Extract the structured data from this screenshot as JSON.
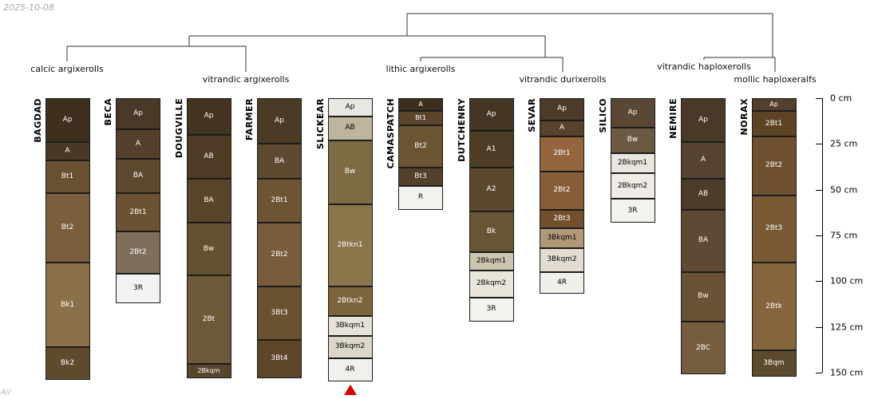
{
  "figure": {
    "date_note": "2025-10-08",
    "footer_note": "A//"
  },
  "dendrogram": {
    "groups": [
      {
        "label": "calcic argixerolls"
      },
      {
        "label": "vitrandic argixerolls"
      },
      {
        "label": "lithic argixerolls"
      },
      {
        "label": "vitrandic durixerolls"
      },
      {
        "label": "vitrandic haploxerolls"
      },
      {
        "label": "mollic haploxeralfs"
      }
    ]
  },
  "depth_axis": {
    "unit": "cm",
    "max_depth_cm": 150,
    "tick_labels": [
      "0 cm",
      "25 cm",
      "50 cm",
      "75 cm",
      "100 cm",
      "125 cm",
      "150 cm"
    ]
  },
  "marker": {
    "type": "triangle",
    "color": "#d40000",
    "profile": "SLICKEAR"
  },
  "profiles": [
    {
      "name": "BAGDAD",
      "horizons": [
        {
          "name": "Ap",
          "top_cm": 0,
          "bottom_cm": 24,
          "color": "#3f2f1f"
        },
        {
          "name": "A",
          "top_cm": 24,
          "bottom_cm": 34,
          "color": "#4a3826"
        },
        {
          "name": "Bt1",
          "top_cm": 34,
          "bottom_cm": 52,
          "color": "#6a5132"
        },
        {
          "name": "Bt2",
          "top_cm": 52,
          "bottom_cm": 90,
          "color": "#7b5f3c"
        },
        {
          "name": "Bk1",
          "top_cm": 90,
          "bottom_cm": 136,
          "color": "#8a7049"
        },
        {
          "name": "Bk2",
          "top_cm": 136,
          "bottom_cm": 154,
          "color": "#5f4a2e"
        }
      ]
    },
    {
      "name": "BECA",
      "horizons": [
        {
          "name": "Ap",
          "top_cm": 0,
          "bottom_cm": 17,
          "color": "#4a3928"
        },
        {
          "name": "A",
          "top_cm": 17,
          "bottom_cm": 33,
          "color": "#53412c"
        },
        {
          "name": "BA",
          "top_cm": 33,
          "bottom_cm": 52,
          "color": "#5c4930"
        },
        {
          "name": "2Bt1",
          "top_cm": 52,
          "bottom_cm": 73,
          "color": "#6b5232"
        },
        {
          "name": "2Bt2",
          "top_cm": 73,
          "bottom_cm": 96,
          "color": "#7d6f5a"
        },
        {
          "name": "3R",
          "top_cm": 96,
          "bottom_cm": 112,
          "color": "#f2f2f2"
        }
      ]
    },
    {
      "name": "DOUGVILLE",
      "horizons": [
        {
          "name": "Ap",
          "top_cm": 0,
          "bottom_cm": 20,
          "color": "#44331f"
        },
        {
          "name": "AB",
          "top_cm": 20,
          "bottom_cm": 44,
          "color": "#4e3b24"
        },
        {
          "name": "BA",
          "top_cm": 44,
          "bottom_cm": 68,
          "color": "#59452a"
        },
        {
          "name": "Bw",
          "top_cm": 68,
          "bottom_cm": 97,
          "color": "#63502e"
        },
        {
          "name": "2Bt",
          "top_cm": 97,
          "bottom_cm": 145,
          "color": "#6d5837"
        },
        {
          "name": "2Bkqm",
          "top_cm": 145,
          "bottom_cm": 153,
          "color": "#57452c"
        }
      ]
    },
    {
      "name": "FARMER",
      "horizons": [
        {
          "name": "Ap",
          "top_cm": 0,
          "bottom_cm": 25,
          "color": "#4b3a26"
        },
        {
          "name": "BA",
          "top_cm": 25,
          "bottom_cm": 44,
          "color": "#5d4930"
        },
        {
          "name": "2Bt1",
          "top_cm": 44,
          "bottom_cm": 68,
          "color": "#6d5433"
        },
        {
          "name": "2Bt2",
          "top_cm": 68,
          "bottom_cm": 103,
          "color": "#795c3a"
        },
        {
          "name": "3Bt3",
          "top_cm": 103,
          "bottom_cm": 132,
          "color": "#6a5130"
        },
        {
          "name": "3Bt4",
          "top_cm": 132,
          "bottom_cm": 153,
          "color": "#5e4628"
        }
      ]
    },
    {
      "name": "SLICKEAR",
      "horizons": [
        {
          "name": "Ap",
          "top_cm": 0,
          "bottom_cm": 10,
          "color": "#e9e7e1"
        },
        {
          "name": "AB",
          "top_cm": 10,
          "bottom_cm": 23,
          "color": "#bfb49c"
        },
        {
          "name": "Bw",
          "top_cm": 23,
          "bottom_cm": 58,
          "color": "#7e6b44"
        },
        {
          "name": "2Btkn1",
          "top_cm": 58,
          "bottom_cm": 103,
          "color": "#8a744a"
        },
        {
          "name": "2Btkn2",
          "top_cm": 103,
          "bottom_cm": 119,
          "color": "#7c653c"
        },
        {
          "name": "3Bkqm1",
          "top_cm": 119,
          "bottom_cm": 130,
          "color": "#e6e2d8"
        },
        {
          "name": "3Bkqm2",
          "top_cm": 130,
          "bottom_cm": 142,
          "color": "#dcd6c8"
        },
        {
          "name": "4R",
          "top_cm": 142,
          "bottom_cm": 155,
          "color": "#f2f0ec"
        }
      ]
    },
    {
      "name": "CAMASPATCH",
      "horizons": [
        {
          "name": "A",
          "top_cm": 0,
          "bottom_cm": 7,
          "color": "#3e2e1d"
        },
        {
          "name": "Bt1",
          "top_cm": 7,
          "bottom_cm": 15,
          "color": "#5a452b"
        },
        {
          "name": "Bt2",
          "top_cm": 15,
          "bottom_cm": 38,
          "color": "#6c5433"
        },
        {
          "name": "Bt3",
          "top_cm": 38,
          "bottom_cm": 48,
          "color": "#53402a"
        },
        {
          "name": "R",
          "top_cm": 48,
          "bottom_cm": 61,
          "color": "#f4f2ee"
        }
      ]
    },
    {
      "name": "DUTCHENRY",
      "horizons": [
        {
          "name": "Ap",
          "top_cm": 0,
          "bottom_cm": 18,
          "color": "#453525"
        },
        {
          "name": "A1",
          "top_cm": 18,
          "bottom_cm": 38,
          "color": "#4f3e26"
        },
        {
          "name": "A2",
          "top_cm": 38,
          "bottom_cm": 62,
          "color": "#5b482d"
        },
        {
          "name": "Bk",
          "top_cm": 62,
          "bottom_cm": 84,
          "color": "#685536"
        },
        {
          "name": "2Bkqm1",
          "top_cm": 84,
          "bottom_cm": 94,
          "color": "#cdc5b2"
        },
        {
          "name": "2Bkqm2",
          "top_cm": 94,
          "bottom_cm": 109,
          "color": "#e9e5da"
        },
        {
          "name": "3R",
          "top_cm": 109,
          "bottom_cm": 122,
          "color": "#f4f2ee"
        }
      ]
    },
    {
      "name": "SEVAR",
      "horizons": [
        {
          "name": "Ap",
          "top_cm": 0,
          "bottom_cm": 12,
          "color": "#4c3b28"
        },
        {
          "name": "A",
          "top_cm": 12,
          "bottom_cm": 21,
          "color": "#564329"
        },
        {
          "name": "2Bt1",
          "top_cm": 21,
          "bottom_cm": 40,
          "color": "#95653e"
        },
        {
          "name": "2Bt2",
          "top_cm": 40,
          "bottom_cm": 61,
          "color": "#875c38"
        },
        {
          "name": "2Bt3",
          "top_cm": 61,
          "bottom_cm": 71,
          "color": "#734f2e"
        },
        {
          "name": "3Bkqm1",
          "top_cm": 71,
          "bottom_cm": 82,
          "color": "#b29878"
        },
        {
          "name": "3Bkqm2",
          "top_cm": 82,
          "bottom_cm": 95,
          "color": "#e2dcd0"
        },
        {
          "name": "4R",
          "top_cm": 95,
          "bottom_cm": 107,
          "color": "#f1efe9"
        }
      ]
    },
    {
      "name": "SILICO",
      "horizons": [
        {
          "name": "Ap",
          "top_cm": 0,
          "bottom_cm": 16,
          "color": "#5a4834"
        },
        {
          "name": "Bw",
          "top_cm": 16,
          "bottom_cm": 30,
          "color": "#6b5942"
        },
        {
          "name": "2Bkqm1",
          "top_cm": 30,
          "bottom_cm": 41,
          "color": "#eae6de"
        },
        {
          "name": "2Bkqm2",
          "top_cm": 41,
          "bottom_cm": 55,
          "color": "#efece5"
        },
        {
          "name": "3R",
          "top_cm": 55,
          "bottom_cm": 68,
          "color": "#f4f2ee"
        }
      ]
    },
    {
      "name": "NEMIRE",
      "horizons": [
        {
          "name": "Ap",
          "top_cm": 0,
          "bottom_cm": 24,
          "color": "#4a3929"
        },
        {
          "name": "A",
          "top_cm": 24,
          "bottom_cm": 44,
          "color": "#554330"
        },
        {
          "name": "AB",
          "top_cm": 44,
          "bottom_cm": 61,
          "color": "#4e3c2a"
        },
        {
          "name": "BA",
          "top_cm": 61,
          "bottom_cm": 95,
          "color": "#5e4a33"
        },
        {
          "name": "Bw",
          "top_cm": 95,
          "bottom_cm": 122,
          "color": "#695235"
        },
        {
          "name": "2BC",
          "top_cm": 122,
          "bottom_cm": 151,
          "color": "#755d3d"
        }
      ]
    },
    {
      "name": "NORAX",
      "horizons": [
        {
          "name": "Ap",
          "top_cm": 0,
          "bottom_cm": 7,
          "color": "#52402c"
        },
        {
          "name": "2Bt1",
          "top_cm": 7,
          "bottom_cm": 21,
          "color": "#5e4425"
        },
        {
          "name": "2Bt2",
          "top_cm": 21,
          "bottom_cm": 53,
          "color": "#6f5130"
        },
        {
          "name": "2Bt3",
          "top_cm": 53,
          "bottom_cm": 90,
          "color": "#7a5a35"
        },
        {
          "name": "2Btk",
          "top_cm": 90,
          "bottom_cm": 138,
          "color": "#85653e"
        },
        {
          "name": "3Bqm",
          "top_cm": 138,
          "bottom_cm": 152,
          "color": "#5c4a2f"
        }
      ]
    }
  ]
}
